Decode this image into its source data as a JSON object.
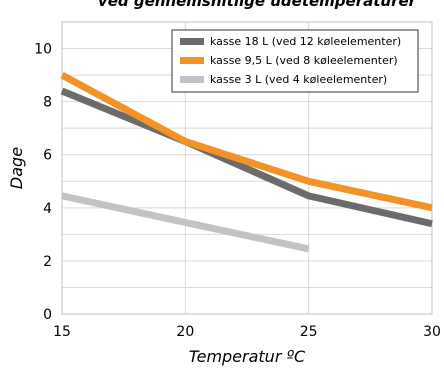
{
  "chart_data": {
    "type": "line",
    "title": "ved gennemsnitlige udetemperaturer",
    "xlabel": "Temperatur ºC",
    "ylabel": "Dage",
    "xlim": [
      15,
      30
    ],
    "ylim": [
      0,
      11
    ],
    "x_ticks": [
      "15",
      "20",
      "25",
      "30"
    ],
    "y_ticks": [
      "0",
      "2",
      "4",
      "6",
      "8",
      "10"
    ],
    "grid": "on",
    "legend_position": "top-right",
    "series": [
      {
        "name": "kasse 18 L (ved 12 køleelementer)",
        "color": "#6b6b6b",
        "x": [
          15,
          20,
          25,
          30
        ],
        "y": [
          8.4,
          6.5,
          4.45,
          3.4
        ]
      },
      {
        "name": "kasse 9,5 L (ved 8 køleelementer)",
        "color": "#f39226",
        "x": [
          15,
          20,
          25,
          30
        ],
        "y": [
          9.0,
          6.5,
          5.0,
          4.0
        ]
      },
      {
        "name": "kasse 3 L  (ved 4 køleelementer)",
        "color": "#c3c3c3",
        "x": [
          15,
          20,
          25
        ],
        "y": [
          4.45,
          3.45,
          2.45
        ]
      }
    ]
  }
}
